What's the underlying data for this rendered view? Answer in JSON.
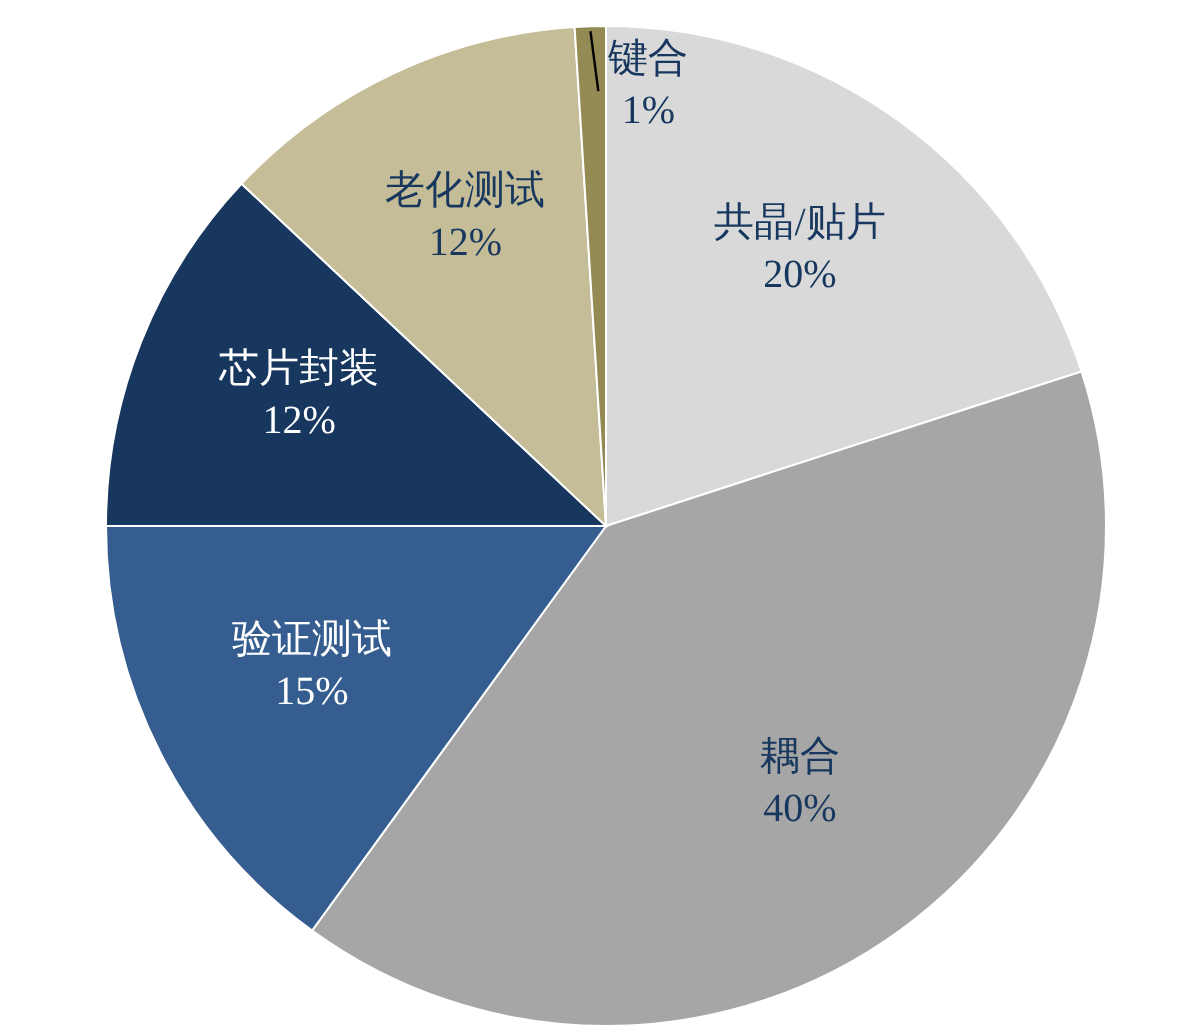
{
  "chart_data": {
    "type": "pie",
    "categories": [
      "共晶/贴片",
      "耦合",
      "验证测试",
      "芯片封装",
      "老化测试",
      "键合"
    ],
    "values": [
      20,
      40,
      15,
      12,
      12,
      1
    ],
    "colors": [
      "#d9d9d9",
      "#a6a6a6",
      "#355d8f",
      "#17375e",
      "#c4bd97",
      "#948a54"
    ],
    "value_labels": [
      "20%",
      "40%",
      "15%",
      "12%",
      "12%",
      "1%"
    ]
  }
}
